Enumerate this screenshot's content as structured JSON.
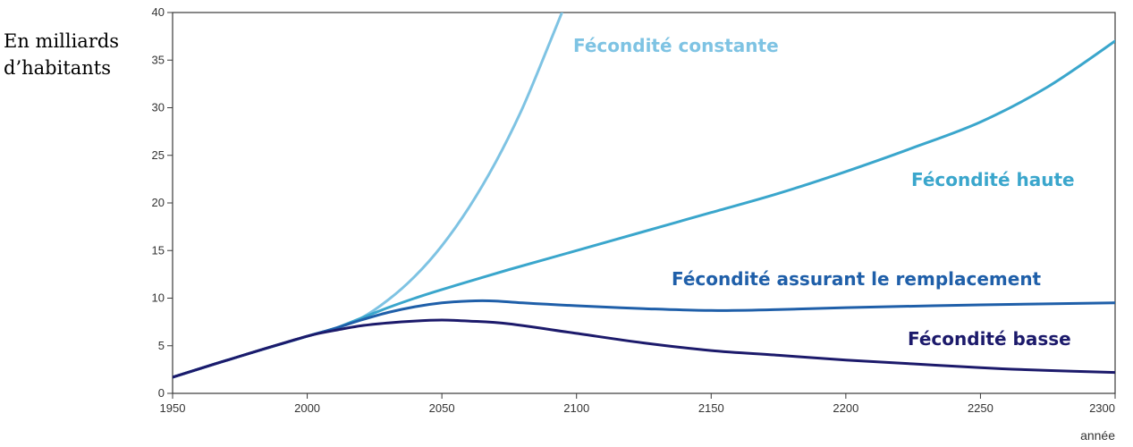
{
  "chart_data": {
    "type": "line",
    "title": "",
    "ylabel_lines": [
      "En milliards",
      "d’habitants"
    ],
    "xlabel": "année",
    "xlim": [
      1950,
      2300
    ],
    "ylim": [
      0,
      40
    ],
    "x_ticks": [
      1950,
      2000,
      2050,
      2100,
      2150,
      2200,
      2250,
      2300
    ],
    "y_ticks": [
      0,
      5,
      10,
      15,
      20,
      25,
      30,
      35,
      40
    ],
    "grid": false,
    "series": [
      {
        "name": "Fécondité constante",
        "color": "#7ec3e3",
        "width": 3,
        "x": [
          1950,
          1975,
          2000,
          2010,
          2020,
          2030,
          2040,
          2050,
          2060,
          2070,
          2080,
          2090,
          2096
        ],
        "y": [
          1.7,
          3.9,
          6.0,
          6.8,
          7.9,
          9.8,
          12.3,
          15.5,
          19.5,
          24.3,
          30.0,
          36.8,
          41.0
        ]
      },
      {
        "name": "Fécondité haute",
        "color": "#3aa6cc",
        "width": 3,
        "x": [
          1950,
          1975,
          2000,
          2010,
          2020,
          2030,
          2040,
          2050,
          2075,
          2100,
          2125,
          2150,
          2175,
          2200,
          2225,
          2250,
          2275,
          2300
        ],
        "y": [
          1.7,
          3.9,
          6.0,
          6.8,
          7.9,
          9.0,
          10.0,
          10.9,
          13.0,
          15.0,
          17.0,
          19.0,
          21.0,
          23.3,
          25.8,
          28.5,
          32.2,
          37.0
        ]
      },
      {
        "name": "Fécondité assurant le remplacement",
        "color": "#1f5fa9",
        "width": 3,
        "x": [
          1950,
          1975,
          2000,
          2010,
          2020,
          2030,
          2040,
          2050,
          2060,
          2070,
          2080,
          2100,
          2125,
          2150,
          2175,
          2200,
          2250,
          2300
        ],
        "y": [
          1.7,
          3.9,
          6.0,
          6.8,
          7.7,
          8.5,
          9.1,
          9.5,
          9.7,
          9.7,
          9.5,
          9.2,
          8.9,
          8.7,
          8.8,
          9.0,
          9.3,
          9.5
        ]
      },
      {
        "name": "Fécondité basse",
        "color": "#1c1a6b",
        "width": 3,
        "x": [
          1950,
          1975,
          2000,
          2010,
          2020,
          2030,
          2040,
          2050,
          2060,
          2075,
          2100,
          2125,
          2150,
          2175,
          2200,
          2225,
          2250,
          2275,
          2300
        ],
        "y": [
          1.7,
          3.9,
          6.0,
          6.6,
          7.1,
          7.4,
          7.6,
          7.7,
          7.6,
          7.3,
          6.3,
          5.3,
          4.5,
          4.0,
          3.5,
          3.1,
          2.7,
          2.4,
          2.2
        ]
      }
    ]
  }
}
